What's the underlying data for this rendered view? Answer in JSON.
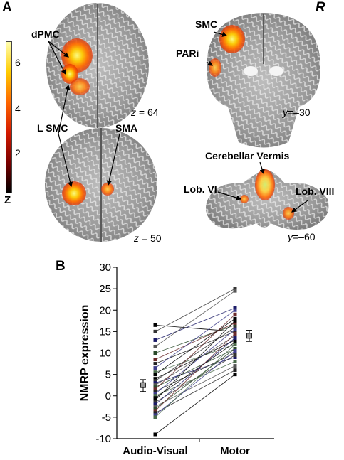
{
  "panel_a": {
    "letter": "A",
    "hemisphere_mark": "R",
    "colorbar": {
      "ticks": [
        "6",
        "4",
        "2"
      ],
      "label": "Z",
      "colors": [
        "#000000",
        "#7a0000",
        "#d41a00",
        "#ff6600",
        "#ffcc00",
        "#ffffb0"
      ]
    },
    "slices": [
      {
        "coord_axis": "z",
        "coord_value": "= 64"
      },
      {
        "coord_axis": "y",
        "coord_value": "=–30"
      },
      {
        "coord_axis": "z",
        "coord_value": "= 50"
      },
      {
        "coord_axis": "y",
        "coord_value": "=–60"
      }
    ],
    "region_labels": [
      "dPMC",
      "SMC",
      "PARi",
      "L SMC",
      "SMA",
      "Cerebellar Vermis",
      "Lob. VI",
      "Lob. VIII"
    ]
  },
  "panel_b": {
    "letter": "B",
    "chart_data": {
      "type": "line",
      "ylabel": "NMRP expression",
      "categories": [
        "Audio-Visual",
        "Motor"
      ],
      "ylim": [
        -10,
        30
      ],
      "yticks": [
        "30",
        "25",
        "20",
        "15",
        "10",
        "5",
        "0",
        "-5",
        "-10"
      ],
      "subjects": [
        [
          16.5,
          15
        ],
        [
          15,
          25
        ],
        [
          13,
          20.5
        ],
        [
          11.5,
          24.5
        ],
        [
          10,
          16.5
        ],
        [
          8.5,
          17
        ],
        [
          7.5,
          15
        ],
        [
          6.5,
          20
        ],
        [
          5.5,
          12
        ],
        [
          5,
          18
        ],
        [
          4,
          13
        ],
        [
          3.5,
          16
        ],
        [
          3,
          9
        ],
        [
          2.5,
          14
        ],
        [
          2,
          11
        ],
        [
          1.5,
          19
        ],
        [
          1,
          10
        ],
        [
          0.5,
          15.5
        ],
        [
          0,
          8
        ],
        [
          -0.5,
          12.5
        ],
        [
          -1,
          17.5
        ],
        [
          -1.5,
          9.5
        ],
        [
          -2,
          13.5
        ],
        [
          -2.5,
          7
        ],
        [
          -3,
          11
        ],
        [
          -3.5,
          14.5
        ],
        [
          -4,
          6
        ],
        [
          -4.5,
          10.5
        ],
        [
          -5,
          12
        ],
        [
          -9,
          5
        ]
      ],
      "means": [
        {
          "category": "Audio-Visual",
          "mean": 2.5,
          "err_low": 1,
          "err_high": 3.8
        },
        {
          "category": "Motor",
          "mean": 14,
          "err_low": 12.7,
          "err_high": 15.3
        }
      ]
    }
  }
}
